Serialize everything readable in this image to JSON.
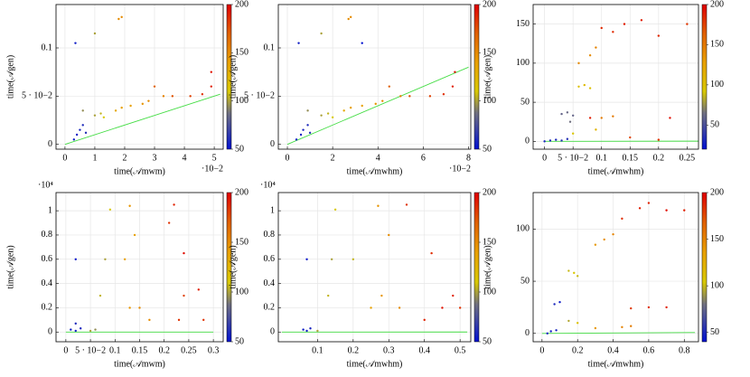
{
  "chart_data": [
    {
      "type": "scatter",
      "xlabel": "time(𝒜mwm)",
      "ylabel": "time(𝒜gen)",
      "x_multiplier": "·10−2",
      "xlim": [
        -0.3,
        5.3
      ],
      "xticks": [
        0,
        1,
        2,
        3,
        4,
        5
      ],
      "ylim": [
        -0.005,
        0.145
      ],
      "yticks": [
        0,
        {
          "value": 0.05,
          "label": "5 · 10−2"
        },
        0.1
      ],
      "clim": [
        50,
        200
      ],
      "cticks": [
        50,
        100,
        150,
        200
      ],
      "grid": true,
      "series": [
        {
          "x": [
            0.3,
            0.4,
            0.5,
            0.6,
            0.35,
            0.7,
            1.0,
            1.2,
            1.0,
            0.6,
            1.3,
            1.7,
            1.9,
            2.2,
            2.6,
            2.8,
            3.3,
            1.8,
            1.9,
            4.2,
            4.6,
            4.9,
            4.9,
            3.0,
            3.6
          ],
          "values": [
            0.005,
            0.01,
            0.015,
            0.02,
            0.105,
            0.012,
            0.03,
            0.032,
            0.115,
            0.035,
            0.028,
            0.035,
            0.038,
            0.04,
            0.042,
            0.045,
            0.05,
            0.13,
            0.132,
            0.05,
            0.052,
            0.06,
            0.075,
            0.06,
            0.05
          ],
          "c": [
            55,
            55,
            58,
            60,
            55,
            62,
            100,
            105,
            100,
            95,
            110,
            135,
            140,
            140,
            145,
            150,
            155,
            150,
            150,
            180,
            185,
            190,
            195,
            170,
            175
          ]
        }
      ],
      "line": {
        "x": [
          0,
          5.2
        ],
        "values": [
          0,
          0.052
        ],
        "color": "#44dd44"
      }
    },
    {
      "type": "scatter",
      "xlabel": "time(𝒜mwhm)",
      "ylabel": "time(𝒜gen)",
      "x_multiplier": "·10−2",
      "xlim": [
        -0.4,
        8.1
      ],
      "xticks": [
        0,
        2,
        4,
        6,
        8
      ],
      "ylim": [
        -0.005,
        0.145
      ],
      "yticks": [
        0,
        {
          "value": 0.05,
          "label": "5 · 10−2"
        },
        0.1
      ],
      "clim": [
        50,
        200
      ],
      "cticks": [
        50,
        100,
        150,
        200
      ],
      "grid": true,
      "series": [
        {
          "x": [
            0.4,
            0.6,
            0.7,
            0.9,
            0.5,
            1.0,
            1.5,
            1.8,
            1.5,
            0.9,
            2.0,
            2.5,
            2.8,
            3.3,
            3.9,
            4.2,
            5.0,
            2.7,
            2.8,
            6.3,
            6.9,
            7.3,
            7.4,
            4.5,
            5.4,
            3.3
          ],
          "values": [
            0.005,
            0.01,
            0.015,
            0.02,
            0.105,
            0.012,
            0.03,
            0.032,
            0.115,
            0.035,
            0.028,
            0.035,
            0.038,
            0.04,
            0.042,
            0.045,
            0.05,
            0.13,
            0.132,
            0.05,
            0.052,
            0.06,
            0.075,
            0.06,
            0.05,
            0.105
          ],
          "c": [
            55,
            55,
            58,
            60,
            55,
            62,
            100,
            105,
            100,
            95,
            110,
            135,
            140,
            140,
            145,
            150,
            155,
            150,
            150,
            180,
            185,
            190,
            195,
            170,
            175,
            50
          ]
        }
      ],
      "line": {
        "x": [
          0,
          8
        ],
        "values": [
          0,
          0.08
        ],
        "color": "#44dd44"
      }
    },
    {
      "type": "scatter",
      "xlabel": "time(𝒜mwhm)",
      "ylabel": "time(𝒜gen)",
      "xlim": [
        -0.02,
        0.27
      ],
      "xticks": [
        0,
        {
          "value": 0.05,
          "label": "5 · 10−2"
        },
        0.1,
        0.15,
        0.2,
        0.25
      ],
      "ylim": [
        -10,
        175
      ],
      "yticks": [
        0,
        50,
        100,
        150
      ],
      "clim": [
        20,
        200
      ],
      "cticks": [
        50,
        100,
        150,
        200
      ],
      "grid": true,
      "series": [
        {
          "x": [
            0,
            0.01,
            0.02,
            0.03,
            0.04,
            0.03,
            0.04,
            0.05,
            0.045,
            0.06,
            0.07,
            0.08,
            0.05,
            0.09,
            0.06,
            0.08,
            0.09,
            0.1,
            0.12,
            0.1,
            0.12,
            0.14,
            0.17,
            0.2,
            0.25,
            0.22,
            0.15,
            0.2,
            0.08
          ],
          "values": [
            0,
            1,
            2,
            1,
            3,
            35,
            37,
            33,
            25,
            70,
            72,
            68,
            10,
            15,
            100,
            110,
            120,
            30,
            32,
            145,
            140,
            150,
            155,
            135,
            150,
            30,
            5,
            2,
            30
          ],
          "c": [
            30,
            30,
            32,
            35,
            35,
            60,
            62,
            60,
            65,
            100,
            105,
            100,
            95,
            110,
            140,
            140,
            145,
            150,
            150,
            185,
            185,
            190,
            190,
            185,
            180,
            195,
            175,
            180,
            190
          ]
        }
      ],
      "line": {
        "x": [
          0,
          0.27
        ],
        "values": [
          0,
          0.27
        ],
        "color": "#44dd44"
      }
    },
    {
      "type": "scatter",
      "xlabel": "time(𝒜mwm)",
      "ylabel": "time(𝒜gen)",
      "y_multiplier": "·10⁴",
      "xlim": [
        -0.02,
        0.32
      ],
      "xticks": [
        0,
        {
          "value": 0.05,
          "label": "5 · 10−2"
        },
        0.1,
        0.15,
        0.2,
        0.25,
        0.3
      ],
      "ylim": [
        -0.08,
        1.15
      ],
      "yticks": [
        0,
        0.2,
        0.4,
        0.6,
        0.8,
        1
      ],
      "clim": [
        50,
        200
      ],
      "cticks": [
        50,
        100,
        150,
        200
      ],
      "grid": true,
      "series": [
        {
          "x": [
            0.01,
            0.02,
            0.03,
            0.02,
            0.02,
            0.05,
            0.07,
            0.08,
            0.09,
            0.06,
            0.12,
            0.13,
            0.14,
            0.15,
            0.13,
            0.17,
            0.21,
            0.22,
            0.23,
            0.24,
            0.24,
            0.27,
            0.28
          ],
          "values": [
            0.02,
            0.01,
            0.03,
            0.6,
            0.07,
            0.01,
            0.3,
            0.6,
            1.01,
            0.02,
            0.6,
            0.2,
            0.8,
            0.2,
            1.04,
            0.1,
            0.9,
            1.05,
            0.1,
            0.65,
            0.3,
            0.35,
            0.1
          ],
          "c": [
            55,
            55,
            58,
            52,
            60,
            100,
            105,
            100,
            110,
            95,
            140,
            145,
            140,
            150,
            145,
            150,
            185,
            190,
            185,
            195,
            180,
            190,
            185
          ]
        }
      ],
      "line": {
        "x": [
          0,
          0.3
        ],
        "values": [
          0,
          3e-05
        ],
        "color": "#44dd44"
      }
    },
    {
      "type": "scatter",
      "xlabel": "time(𝒜mwhm)",
      "ylabel": "time(𝒜gen)",
      "y_multiplier": "·10⁴",
      "xlim": [
        -0.01,
        0.53
      ],
      "xticks": [
        0.1,
        0.2,
        0.3,
        0.4,
        0.5
      ],
      "ylim": [
        -0.08,
        1.15
      ],
      "yticks": [
        0,
        0.2,
        0.4,
        0.6,
        0.8,
        1
      ],
      "clim": [
        50,
        200
      ],
      "cticks": [
        50,
        100,
        150,
        200
      ],
      "grid": true,
      "series": [
        {
          "x": [
            0.06,
            0.07,
            0.08,
            0.07,
            0.1,
            0.13,
            0.14,
            0.15,
            0.2,
            0.25,
            0.28,
            0.3,
            0.27,
            0.33,
            0.35,
            0.4,
            0.42,
            0.45,
            0.48,
            0.5
          ],
          "values": [
            0.02,
            0.01,
            0.03,
            0.6,
            0.01,
            0.3,
            0.6,
            1.01,
            0.6,
            0.2,
            0.3,
            0.8,
            1.04,
            0.2,
            1.05,
            0.1,
            0.65,
            0.2,
            0.3,
            0.2
          ],
          "c": [
            55,
            55,
            58,
            52,
            100,
            105,
            100,
            110,
            105,
            140,
            145,
            150,
            145,
            150,
            185,
            190,
            185,
            195,
            190,
            185
          ]
        }
      ],
      "line": {
        "x": [
          0,
          0.52
        ],
        "values": [
          0,
          5.2e-05
        ],
        "color": "#44dd44"
      }
    },
    {
      "type": "scatter",
      "xlabel": "time(𝒜mwhm)",
      "ylabel": "time(𝒜gen)",
      "xlim": [
        -0.05,
        0.88
      ],
      "xticks": [
        0,
        0.2,
        0.4,
        0.6,
        0.8
      ],
      "ylim": [
        -8,
        135
      ],
      "yticks": [
        0,
        50,
        100
      ],
      "clim": [
        40,
        200
      ],
      "cticks": [
        50,
        100,
        150,
        200
      ],
      "grid": true,
      "series": [
        {
          "x": [
            0.05,
            0.08,
            0.1,
            0.07,
            0.03,
            0.15,
            0.18,
            0.2,
            0.15,
            0.2,
            0.3,
            0.35,
            0.4,
            0.3,
            0.45,
            0.5,
            0.45,
            0.55,
            0.6,
            0.7,
            0.8,
            0.6,
            0.7,
            0.5
          ],
          "values": [
            2,
            3,
            30,
            28,
            0,
            60,
            58,
            55,
            12,
            10,
            85,
            90,
            95,
            5,
            6,
            7,
            110,
            120,
            125,
            118,
            118,
            25,
            25,
            24
          ],
          "c": [
            45,
            48,
            45,
            50,
            45,
            100,
            105,
            100,
            95,
            110,
            140,
            145,
            150,
            140,
            150,
            155,
            185,
            190,
            190,
            195,
            190,
            185,
            190,
            180
          ]
        }
      ],
      "line": {
        "x": [
          0,
          0.86
        ],
        "values": [
          0,
          0.86
        ],
        "color": "#44dd44"
      }
    }
  ]
}
